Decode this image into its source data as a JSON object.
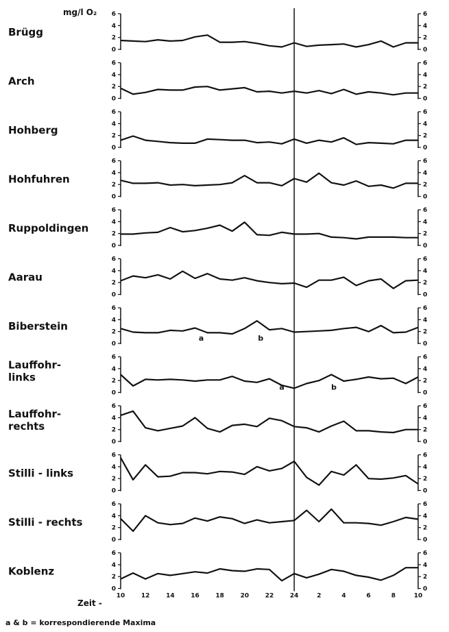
{
  "chart_data": {
    "type": "line",
    "y_unit_label": "mg/l O₂",
    "x_axis_prefix": "Zeit -",
    "x_tick_labels": [
      "10",
      "12",
      "14",
      "16",
      "18",
      "20",
      "22",
      "24",
      "2",
      "4",
      "6",
      "8",
      "10"
    ],
    "y_ticks": [
      0,
      2,
      4,
      6
    ],
    "ylim": [
      0,
      6
    ],
    "caption": "a & b = korrespondierende Maxima",
    "x_hours": [
      10,
      11,
      12,
      13,
      14,
      15,
      16,
      17,
      18,
      19,
      20,
      21,
      22,
      23,
      24,
      25,
      26,
      27,
      28,
      29,
      30,
      31,
      32,
      33,
      34
    ],
    "series": [
      {
        "name": "Brügg",
        "values": [
          1.5,
          1.4,
          1.3,
          1.6,
          1.4,
          1.5,
          2.1,
          2.4,
          1.2,
          1.2,
          1.3,
          1.0,
          0.6,
          0.4,
          1.1,
          0.5,
          0.7,
          0.8,
          0.9,
          0.4,
          0.8,
          1.4,
          0.4,
          1.1,
          1.1
        ]
      },
      {
        "name": "Arch",
        "values": [
          1.7,
          0.7,
          1.0,
          1.5,
          1.4,
          1.4,
          1.9,
          2.0,
          1.4,
          1.6,
          1.8,
          1.1,
          1.2,
          0.9,
          1.2,
          0.9,
          1.3,
          0.8,
          1.5,
          0.7,
          1.1,
          0.9,
          0.6,
          0.9,
          0.9
        ]
      },
      {
        "name": "Hohberg",
        "values": [
          1.2,
          1.9,
          1.2,
          1.0,
          0.8,
          0.7,
          0.7,
          1.4,
          1.3,
          1.2,
          1.2,
          0.8,
          0.9,
          0.6,
          1.4,
          0.7,
          1.2,
          0.9,
          1.6,
          0.5,
          0.8,
          0.7,
          0.6,
          1.2,
          1.2
        ]
      },
      {
        "name": "Hohfuhren",
        "values": [
          2.7,
          2.2,
          2.2,
          2.3,
          1.9,
          2.0,
          1.8,
          1.9,
          2.0,
          2.3,
          3.5,
          2.3,
          2.3,
          1.8,
          3.0,
          2.4,
          3.9,
          2.3,
          1.9,
          2.6,
          1.7,
          1.9,
          1.4,
          2.2,
          2.2
        ]
      },
      {
        "name": "Ruppoldingen",
        "values": [
          1.9,
          1.9,
          2.1,
          2.2,
          3.0,
          2.3,
          2.5,
          2.9,
          3.4,
          2.4,
          3.9,
          1.8,
          1.7,
          2.2,
          1.9,
          1.9,
          2.0,
          1.4,
          1.3,
          1.1,
          1.4,
          1.4,
          1.4,
          1.3,
          1.3
        ]
      },
      {
        "name": "Aarau",
        "values": [
          2.3,
          3.1,
          2.8,
          3.3,
          2.6,
          3.9,
          2.7,
          3.5,
          2.6,
          2.4,
          2.8,
          2.3,
          2.0,
          1.8,
          1.9,
          1.2,
          2.4,
          2.4,
          2.9,
          1.5,
          2.3,
          2.6,
          1.0,
          2.3,
          2.4
        ]
      },
      {
        "name": "Biberstein",
        "values": [
          2.5,
          1.9,
          1.8,
          1.8,
          2.2,
          2.1,
          2.6,
          1.8,
          1.8,
          1.6,
          2.5,
          3.8,
          2.3,
          2.5,
          1.9,
          2.0,
          2.1,
          2.2,
          2.5,
          2.7,
          2.0,
          3.0,
          1.8,
          1.9,
          2.7
        ]
      },
      {
        "name": "Lauffohr-links",
        "values": [
          3.0,
          1.1,
          2.2,
          2.1,
          2.2,
          2.1,
          1.9,
          2.1,
          2.1,
          2.7,
          1.9,
          1.7,
          2.3,
          1.2,
          0.7,
          1.5,
          2.0,
          3.0,
          1.9,
          2.2,
          2.6,
          2.3,
          2.4,
          1.5,
          2.6
        ]
      },
      {
        "name": "Lauffohr-rechts",
        "values": [
          4.4,
          5.1,
          2.3,
          1.8,
          2.2,
          2.6,
          4.0,
          2.2,
          1.6,
          2.7,
          2.9,
          2.5,
          3.9,
          3.5,
          2.5,
          2.3,
          1.6,
          2.6,
          3.4,
          1.8,
          1.8,
          1.6,
          1.5,
          2.0,
          2.0
        ]
      },
      {
        "name": "Stilli - links",
        "values": [
          5.5,
          1.8,
          4.3,
          2.3,
          2.4,
          3.0,
          3.0,
          2.8,
          3.2,
          3.1,
          2.7,
          4.0,
          3.3,
          3.7,
          4.9,
          2.2,
          0.9,
          3.2,
          2.6,
          4.3,
          2.0,
          1.9,
          2.1,
          2.5,
          1.1
        ]
      },
      {
        "name": "Stilli - rechts",
        "values": [
          3.5,
          1.4,
          4.0,
          2.8,
          2.5,
          2.7,
          3.6,
          3.1,
          3.8,
          3.5,
          2.7,
          3.3,
          2.8,
          3.0,
          3.2,
          4.9,
          3.0,
          5.1,
          2.8,
          2.8,
          2.7,
          2.4,
          3.0,
          3.7,
          3.4
        ]
      },
      {
        "name": "Koblenz",
        "values": [
          1.6,
          2.6,
          1.6,
          2.5,
          2.2,
          2.5,
          2.8,
          2.6,
          3.3,
          3.0,
          2.9,
          3.3,
          3.2,
          1.3,
          2.5,
          1.8,
          2.4,
          3.2,
          2.9,
          2.2,
          1.9,
          1.4,
          2.2,
          3.5,
          3.5
        ]
      }
    ],
    "annotations": [
      {
        "text": "a",
        "series": "Biberstein",
        "x_hour": 16.5
      },
      {
        "text": "b",
        "series": "Biberstein",
        "x_hour": 21.3
      },
      {
        "text": "a",
        "series": "Lauffohr-links",
        "x_hour": 23
      },
      {
        "text": "b",
        "series": "Lauffohr-links",
        "x_hour": 27.2
      }
    ],
    "vertical_reference_line_hour": 24,
    "grid": false,
    "legend": "none"
  }
}
